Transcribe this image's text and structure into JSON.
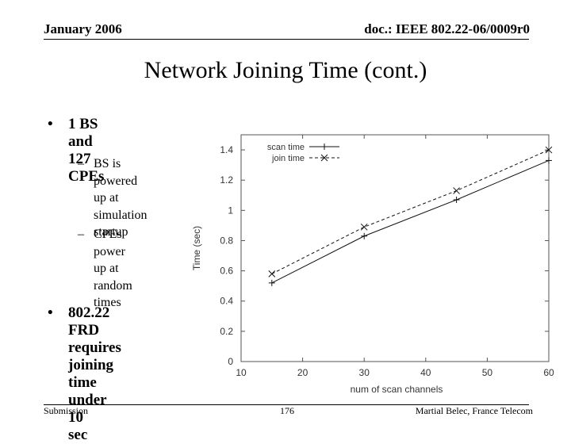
{
  "header": {
    "date": "January 2006",
    "doc": "doc.: IEEE 802.22-06/0009r0"
  },
  "title": "Network Joining Time (cont.)",
  "bullets": [
    {
      "text_lines": [
        "1 BS and 127",
        "CPEs"
      ]
    },
    {
      "text_lines": [
        "802.22 FRD",
        "requires joining",
        "time under 10",
        "sec"
      ]
    }
  ],
  "sub_bullets": [
    {
      "text_lines": [
        "BS is powered",
        "up at",
        "simulation",
        "startup"
      ]
    },
    {
      "text_lines": [
        "CPEs power",
        "up at random",
        "times"
      ]
    }
  ],
  "chart_data": {
    "type": "line",
    "xlabel": "num of scan channels",
    "ylabel": "Time (sec)",
    "xlim": [
      10,
      60
    ],
    "ylim": [
      0,
      1.5
    ],
    "xticks": [
      "10",
      "20",
      "30",
      "40",
      "50",
      "60"
    ],
    "yticks": [
      "0",
      "0.2",
      "0.4",
      "0.6",
      "0.8",
      "1",
      "1.2",
      "1.4"
    ],
    "legend_position": "top-left",
    "series": [
      {
        "name": "scan time",
        "marker": "+",
        "dash": "solid",
        "x": [
          15,
          30,
          45,
          60
        ],
        "y": [
          0.52,
          0.83,
          1.07,
          1.33
        ]
      },
      {
        "name": "join time",
        "marker": "x",
        "dash": "dashed",
        "x": [
          15,
          30,
          45,
          60
        ],
        "y": [
          0.58,
          0.89,
          1.13,
          1.4
        ]
      }
    ]
  },
  "footer": {
    "left": "Submission",
    "page": "176",
    "author": "Martial Belec, France Telecom"
  }
}
